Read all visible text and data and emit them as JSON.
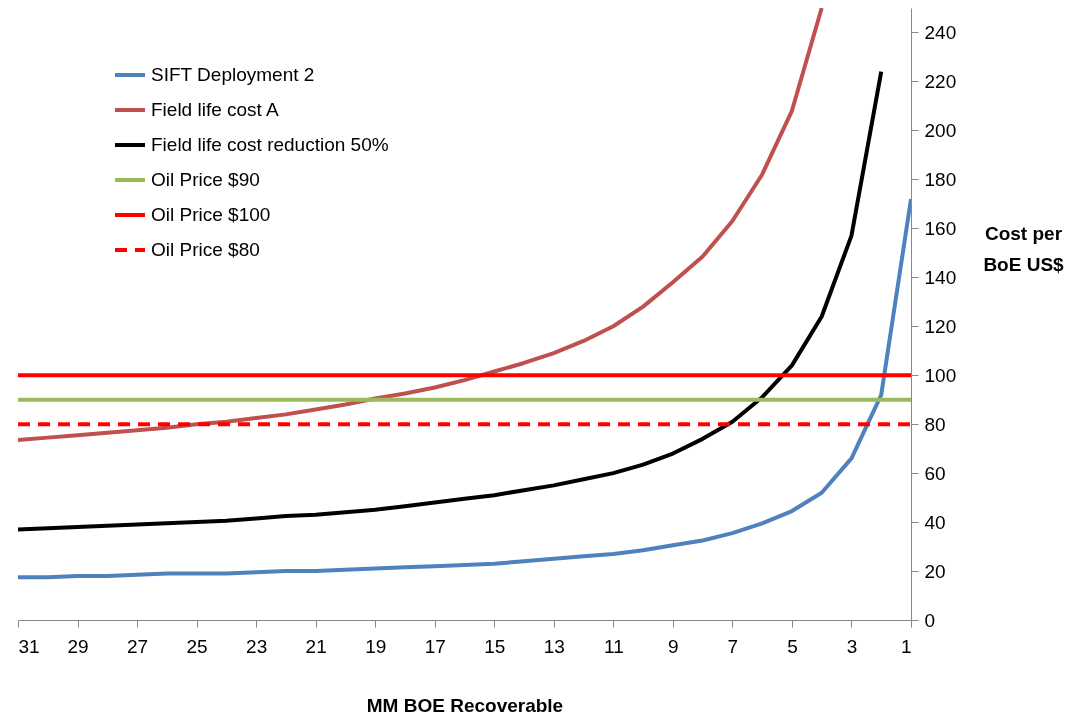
{
  "chart_data": {
    "type": "line",
    "xlabel": "MM BOE Recoverable",
    "ylabel": "Cost per BoE US$",
    "x": [
      31,
      30,
      29,
      28,
      27,
      26,
      25,
      24,
      23,
      22,
      21,
      20,
      19,
      18,
      17,
      16,
      15,
      14,
      13,
      12,
      11,
      10,
      9,
      8,
      7,
      6,
      5,
      4,
      3,
      2,
      1
    ],
    "xlim": [
      31,
      1
    ],
    "xticks": [
      31,
      29,
      27,
      25,
      23,
      21,
      19,
      17,
      15,
      13,
      11,
      9,
      7,
      5,
      3,
      1
    ],
    "ylim": [
      0,
      250
    ],
    "yticks": [
      0,
      20,
      40,
      60,
      80,
      100,
      120,
      140,
      160,
      180,
      200,
      220,
      240
    ],
    "grid": false,
    "legend": "top left",
    "marker": "none",
    "series": [
      {
        "name": "SIFT Deployment 2",
        "color": "#4f81bd",
        "line_style": "solid",
        "values": [
          17.5,
          17.5,
          18,
          18,
          18.5,
          19,
          19,
          19,
          19.5,
          20,
          20,
          20.5,
          21,
          21.5,
          22,
          22.5,
          23,
          24,
          25,
          26,
          27,
          28.5,
          30.5,
          32.5,
          35.5,
          39.5,
          44.5,
          52,
          66,
          92,
          172
        ]
      },
      {
        "name": "Field life cost A",
        "color": "#c0504d",
        "line_style": "solid",
        "values": [
          73.5,
          74.5,
          75.5,
          76.5,
          77.5,
          78.5,
          80,
          81,
          82.5,
          84,
          86,
          88,
          90.5,
          92.5,
          95,
          98,
          101.5,
          105,
          109,
          114,
          120,
          128,
          138,
          148.5,
          163,
          182,
          208,
          250,
          null,
          null,
          null
        ]
      },
      {
        "name": "Field life cost reduction 50%",
        "color": "#000000",
        "line_style": "solid",
        "values": [
          37,
          37.5,
          38,
          38.5,
          39,
          39.5,
          40,
          40.5,
          41.5,
          42.5,
          43,
          44,
          45,
          46.5,
          48,
          49.5,
          51,
          53,
          55,
          57.5,
          60,
          63.5,
          68,
          74,
          81,
          91,
          104,
          124,
          157,
          224,
          null
        ]
      },
      {
        "name": "Oil Price $90",
        "color": "#9bbb59",
        "line_style": "solid",
        "values": [
          90,
          90,
          90,
          90,
          90,
          90,
          90,
          90,
          90,
          90,
          90,
          90,
          90,
          90,
          90,
          90,
          90,
          90,
          90,
          90,
          90,
          90,
          90,
          90,
          90,
          90,
          90,
          90,
          90,
          90,
          90
        ]
      },
      {
        "name": "Oil Price $100",
        "color": "#ff0000",
        "line_style": "solid",
        "values": [
          100,
          100,
          100,
          100,
          100,
          100,
          100,
          100,
          100,
          100,
          100,
          100,
          100,
          100,
          100,
          100,
          100,
          100,
          100,
          100,
          100,
          100,
          100,
          100,
          100,
          100,
          100,
          100,
          100,
          100,
          100
        ]
      },
      {
        "name": "Oil Price $80",
        "color": "#ff0000",
        "line_style": "dashed",
        "values": [
          80,
          80,
          80,
          80,
          80,
          80,
          80,
          80,
          80,
          80,
          80,
          80,
          80,
          80,
          80,
          80,
          80,
          80,
          80,
          80,
          80,
          80,
          80,
          80,
          80,
          80,
          80,
          80,
          80,
          80,
          80
        ]
      }
    ]
  }
}
